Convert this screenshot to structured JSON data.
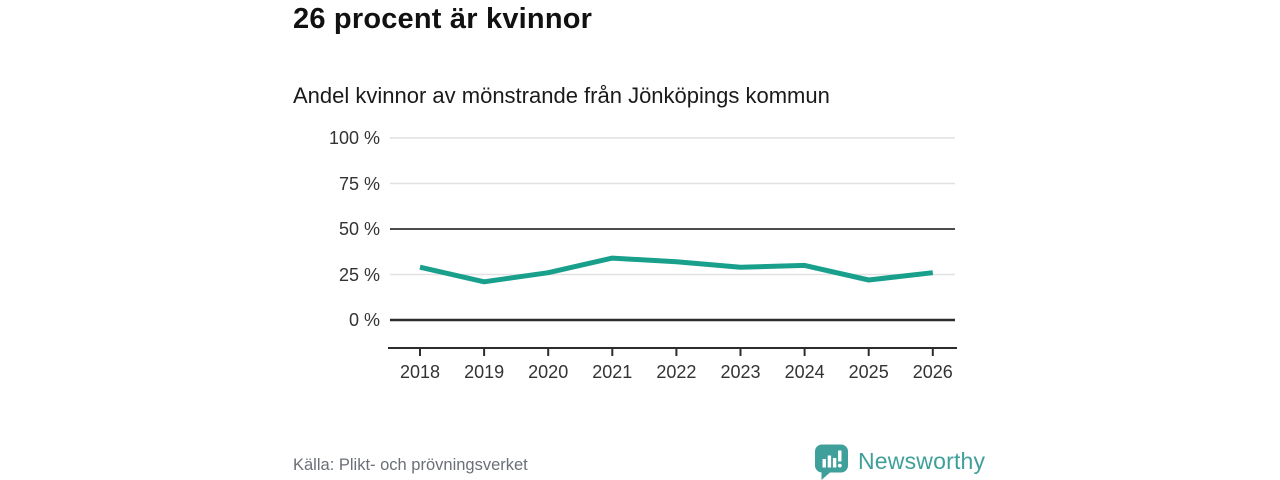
{
  "header": {
    "title": "26 procent är kvinnor",
    "subtitle": "Andel kvinnor av mönstrande från Jönköpings kommun"
  },
  "chart_data": {
    "type": "line",
    "title": "26 procent är kvinnor",
    "subtitle": "Andel kvinnor av mönstrande från Jönköpings kommun",
    "categories": [
      "2018",
      "2019",
      "2020",
      "2021",
      "2022",
      "2023",
      "2024",
      "2025",
      "2026"
    ],
    "series": [
      {
        "name": "Andel kvinnor av mönstrande",
        "values": [
          29,
          21,
          26,
          34,
          32,
          29,
          30,
          22,
          26
        ]
      }
    ],
    "unit": "%",
    "xlabel": "",
    "ylabel": "",
    "ylim": [
      0,
      100
    ],
    "y_tick_labels": [
      "100 %",
      "75 %",
      "50 %",
      "25 %",
      "0 %"
    ],
    "y_tick_values": [
      100,
      75,
      50,
      25,
      0
    ],
    "grid": "horizontal gridlines on, emphasized line at 50% and 0%",
    "legend_position": "none",
    "line_color": "#19a08c"
  },
  "footer": {
    "source": "Källa: Plikt- och prövningsverket",
    "brand_name": "Newsworthy",
    "brand_color": "#3f9f9b"
  },
  "colors": {
    "grid_light": "#e1e1e1",
    "grid_half": "#4c4c4c",
    "grid_zero": "#2d2d2d",
    "axis": "#2d2d2d",
    "tick_text": "#333333"
  }
}
